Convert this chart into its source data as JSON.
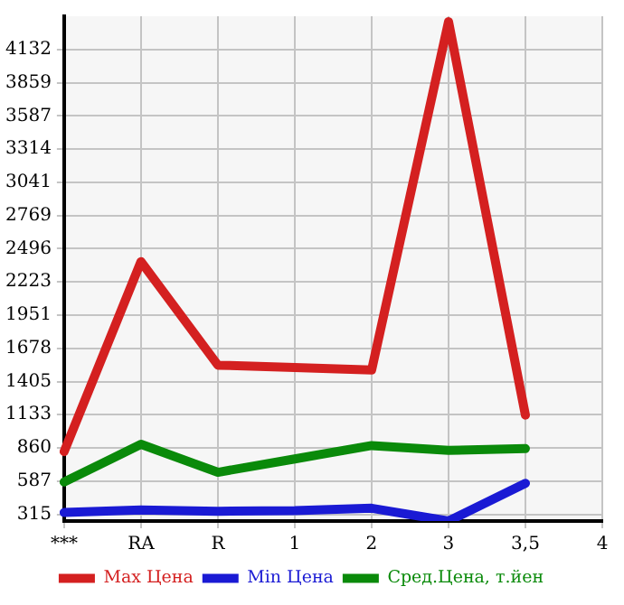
{
  "chart_data": {
    "type": "line",
    "categories": [
      "***",
      "RA",
      "R",
      "1",
      "2",
      "3",
      "3,5",
      "4"
    ],
    "series": [
      {
        "name": "Max Цена",
        "color": "#d42020",
        "values": [
          830,
          2390,
          1540,
          1520,
          1500,
          4360,
          1130,
          null
        ]
      },
      {
        "name": "Min Цена",
        "color": "#1a1ad4",
        "values": [
          330,
          350,
          340,
          345,
          365,
          260,
          570,
          null
        ]
      },
      {
        "name": "Сред.Цена, т.йен",
        "color": "#0a8a0a",
        "values": [
          580,
          890,
          660,
          770,
          880,
          840,
          855,
          null
        ]
      }
    ],
    "ylim": [
      260,
      4405
    ],
    "yticks": [
      315,
      587,
      860,
      1133,
      1405,
      1678,
      1951,
      2223,
      2496,
      2769,
      3041,
      3314,
      3587,
      3859,
      4132
    ],
    "grid": true,
    "legend": "bottom",
    "marker": "none",
    "line_style": "solid"
  }
}
